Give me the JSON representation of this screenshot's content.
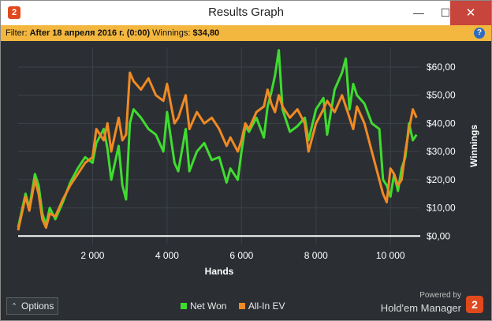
{
  "window": {
    "title": "Results Graph",
    "app_icon": "2",
    "minimize_glyph": "—",
    "maximize_glyph": "☐",
    "close_glyph": "✕"
  },
  "filter": {
    "prefix": "Filter:",
    "value": "After 18 апреля 2016 г. (0:00)",
    "winnings_label": "Winnings:",
    "winnings_value": "$34,80",
    "help_glyph": "?"
  },
  "colors": {
    "background": "#2b2f33",
    "net_won": "#3fdc2f",
    "all_in_ev": "#f08a24",
    "zero_line": "#ffffff",
    "filter_bar": "#f3b73f",
    "brand": "#e0491e"
  },
  "chart_data": {
    "type": "line",
    "xlabel": "Hands",
    "ylabel": "Winnings",
    "xlim": [
      0,
      10800
    ],
    "ylim": [
      -3,
      67
    ],
    "x_ticks": [
      2000,
      4000,
      6000,
      8000,
      10000
    ],
    "x_tick_labels": [
      "2 000",
      "4 000",
      "6 000",
      "8 000",
      "10 000"
    ],
    "y_ticks": [
      0,
      10,
      20,
      30,
      40,
      50,
      60
    ],
    "y_tick_labels": [
      "$0,00",
      "$10,00",
      "$20,00",
      "$30,00",
      "$40,00",
      "$50,00",
      "$60,00"
    ],
    "series": [
      {
        "name": "Net Won",
        "color": "#3fdc2f",
        "x": [
          0,
          200,
          300,
          450,
          550,
          650,
          750,
          850,
          1000,
          1200,
          1400,
          1600,
          1800,
          2000,
          2100,
          2300,
          2400,
          2500,
          2600,
          2700,
          2800,
          2900,
          3000,
          3100,
          3300,
          3500,
          3700,
          3900,
          4000,
          4200,
          4300,
          4500,
          4600,
          4800,
          5000,
          5200,
          5400,
          5600,
          5700,
          5900,
          6000,
          6100,
          6200,
          6400,
          6600,
          6700,
          6800,
          6900,
          7000,
          7100,
          7300,
          7500,
          7700,
          7800,
          8000,
          8200,
          8300,
          8500,
          8700,
          8800,
          8900,
          9000,
          9100,
          9300,
          9500,
          9700,
          9800,
          9900,
          10000,
          10100,
          10200,
          10300,
          10400,
          10500,
          10600,
          10700
        ],
        "y": [
          3,
          15,
          10,
          22,
          18,
          8,
          4,
          10,
          6,
          12,
          19,
          24,
          28,
          26,
          33,
          38,
          31,
          20,
          26,
          32,
          18,
          13,
          40,
          45,
          42,
          38,
          36,
          30,
          44,
          26,
          23,
          38,
          23,
          30,
          33,
          27,
          28,
          19,
          24,
          20,
          30,
          39,
          37,
          42,
          35,
          46,
          51,
          57,
          66,
          45,
          37,
          39,
          42,
          34,
          45,
          49,
          36,
          52,
          58,
          63,
          45,
          54,
          50,
          47,
          40,
          38,
          20,
          18,
          14,
          22,
          16,
          24,
          28,
          40,
          34,
          36
        ]
      },
      {
        "name": "All-In EV",
        "color": "#f08a24",
        "x": [
          0,
          200,
          300,
          450,
          550,
          650,
          750,
          850,
          1000,
          1200,
          1400,
          1600,
          1800,
          2000,
          2100,
          2300,
          2400,
          2500,
          2600,
          2700,
          2800,
          2900,
          3000,
          3100,
          3300,
          3500,
          3700,
          3900,
          4000,
          4200,
          4300,
          4500,
          4600,
          4800,
          5000,
          5200,
          5400,
          5600,
          5700,
          5900,
          6000,
          6100,
          6200,
          6400,
          6600,
          6700,
          6800,
          6900,
          7000,
          7100,
          7300,
          7500,
          7700,
          7800,
          8000,
          8200,
          8300,
          8500,
          8700,
          8800,
          8900,
          9000,
          9100,
          9300,
          9500,
          9700,
          9800,
          9900,
          10000,
          10100,
          10200,
          10300,
          10400,
          10500,
          10600,
          10700
        ],
        "y": [
          2,
          14,
          9,
          20,
          15,
          6,
          3,
          8,
          7,
          13,
          18,
          22,
          26,
          28,
          38,
          34,
          40,
          30,
          36,
          42,
          34,
          36,
          58,
          55,
          52,
          56,
          50,
          48,
          54,
          40,
          42,
          50,
          38,
          44,
          40,
          42,
          38,
          32,
          35,
          30,
          34,
          40,
          38,
          44,
          46,
          52,
          47,
          44,
          50,
          46,
          42,
          45,
          40,
          30,
          40,
          45,
          48,
          44,
          50,
          46,
          42,
          38,
          46,
          40,
          30,
          20,
          15,
          12,
          24,
          22,
          18,
          20,
          30,
          38,
          45,
          42
        ]
      }
    ]
  },
  "legend": {
    "net_won": "Net Won",
    "all_in_ev": "All-In EV"
  },
  "footer": {
    "options_label": "Options",
    "options_caret": "^",
    "powered_by": "Powered by",
    "brand_name": "Hold'em Manager",
    "brand_logo": "2"
  }
}
